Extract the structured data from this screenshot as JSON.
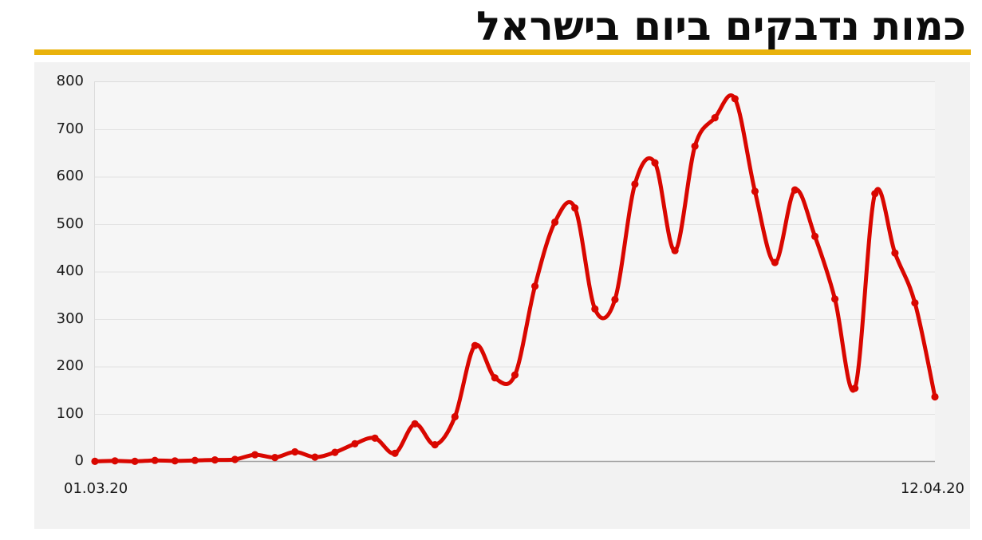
{
  "header": {
    "title": "כמות נדבקים ביום בישראל",
    "title_color": "#0c0c0c",
    "accent_bar_color": "#e9b20c"
  },
  "panel": {
    "background": "#f2f2f2",
    "plot_background": "#f6f6f6",
    "border_color": "#dcdcdc",
    "grid_color": "#e3e3e3",
    "axis_line_color": "#a3a3a3",
    "tick_text_color": "#1a1a1a"
  },
  "chart_data": {
    "type": "line",
    "title": "כמות נדבקים ביום בישראל",
    "xlabel": "",
    "ylabel": "",
    "x_start_label": "01.03.20",
    "x_end_label": "12.04.20",
    "ylim": [
      0,
      800
    ],
    "yticks": [
      0,
      100,
      200,
      300,
      400,
      500,
      600,
      700,
      800
    ],
    "grid": true,
    "legend": "none",
    "line_color": "#d90700",
    "marker": "circle",
    "marker_radius": 4.6,
    "line_width": 5,
    "dates": [
      "01.03.20",
      "02.03.20",
      "03.03.20",
      "04.03.20",
      "05.03.20",
      "06.03.20",
      "07.03.20",
      "08.03.20",
      "09.03.20",
      "10.03.20",
      "11.03.20",
      "12.03.20",
      "13.03.20",
      "14.03.20",
      "15.03.20",
      "16.03.20",
      "17.03.20",
      "18.03.20",
      "19.03.20",
      "20.03.20",
      "21.03.20",
      "22.03.20",
      "23.03.20",
      "24.03.20",
      "25.03.20",
      "26.03.20",
      "27.03.20",
      "28.03.20",
      "29.03.20",
      "30.03.20",
      "31.03.20",
      "01.04.20",
      "02.04.20",
      "03.04.20",
      "04.04.20",
      "05.04.20",
      "06.04.20",
      "07.04.20",
      "08.04.20",
      "09.04.20",
      "10.04.20",
      "11.04.20",
      "12.04.20"
    ],
    "values": [
      1,
      2,
      1,
      3,
      2,
      3,
      4,
      5,
      15,
      9,
      21,
      10,
      20,
      38,
      50,
      18,
      80,
      36,
      95,
      245,
      177,
      183,
      370,
      505,
      535,
      322,
      342,
      585,
      630,
      445,
      665,
      725,
      765,
      570,
      420,
      573,
      475,
      343,
      155,
      565,
      440,
      335,
      137
    ]
  }
}
